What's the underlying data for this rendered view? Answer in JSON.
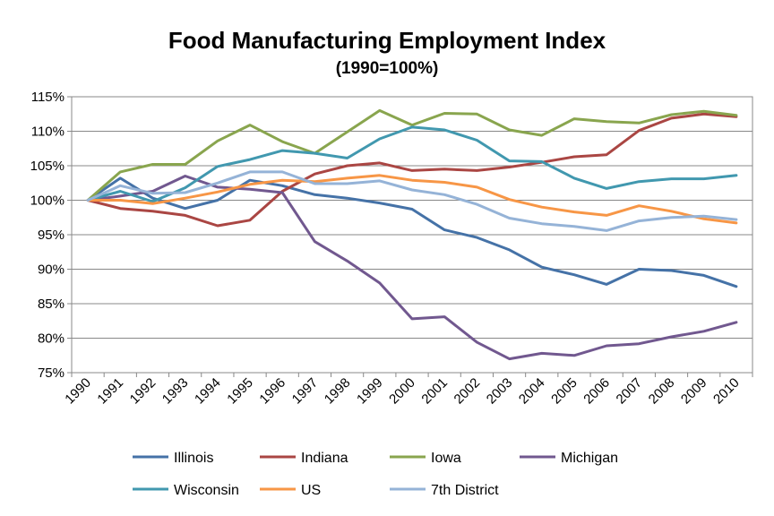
{
  "chart_data": {
    "type": "line",
    "title": "Food Manufacturing Employment Index",
    "subtitle": "(1990=100%)",
    "xlabel": "",
    "ylabel": "",
    "ylim": [
      75,
      115
    ],
    "y_ticks": [
      75,
      80,
      85,
      90,
      95,
      100,
      105,
      110,
      115
    ],
    "y_tick_labels": [
      "75%",
      "80%",
      "85%",
      "90%",
      "95%",
      "100%",
      "105%",
      "110%",
      "115%"
    ],
    "categories": [
      "1990",
      "1991",
      "1992",
      "1993",
      "1994",
      "1995",
      "1996",
      "1997",
      "1998",
      "1999",
      "2000",
      "2001",
      "2002",
      "2003",
      "2004",
      "2005",
      "2006",
      "2007",
      "2008",
      "2009",
      "2010"
    ],
    "grid": "horizontal",
    "legend_position": "bottom",
    "series": [
      {
        "name": "Illinois",
        "color": "#4572A7",
        "values": [
          100,
          103.2,
          100.3,
          98.8,
          100,
          102.9,
          102.1,
          100.8,
          100.3,
          99.6,
          98.7,
          95.7,
          94.6,
          92.8,
          90.3,
          89.2,
          87.8,
          90,
          89.8,
          89.1,
          87.5
        ]
      },
      {
        "name": "Indiana",
        "color": "#AA4643",
        "values": [
          100,
          98.8,
          98.4,
          97.8,
          96.3,
          97.1,
          101.3,
          103.8,
          105,
          105.4,
          104.3,
          104.5,
          104.3,
          104.8,
          105.5,
          106.3,
          106.6,
          110.1,
          111.9,
          112.5,
          112.1
        ]
      },
      {
        "name": "Iowa",
        "color": "#89A54E",
        "values": [
          100,
          104.1,
          105.2,
          105.2,
          108.6,
          110.9,
          108.5,
          106.8,
          109.9,
          113,
          110.9,
          112.6,
          112.5,
          110.2,
          109.4,
          111.8,
          111.4,
          111.2,
          112.4,
          112.9,
          112.3
        ]
      },
      {
        "name": "Michigan",
        "color": "#71588F",
        "values": [
          100,
          100.6,
          101.3,
          103.5,
          101.9,
          101.6,
          101.1,
          94,
          91.2,
          88,
          82.8,
          83.1,
          79.4,
          77,
          77.8,
          77.5,
          78.9,
          79.2,
          80.2,
          81,
          82.3
        ]
      },
      {
        "name": "Wisconsin",
        "color": "#4198AF",
        "values": [
          100,
          101.3,
          99.8,
          101.8,
          104.9,
          105.9,
          107.2,
          106.8,
          106.1,
          108.9,
          110.6,
          110.2,
          108.7,
          105.7,
          105.6,
          103.2,
          101.7,
          102.7,
          103.1,
          103.1,
          103.6
        ]
      },
      {
        "name": "US",
        "color": "#F79646",
        "values": [
          100,
          100,
          99.5,
          100.3,
          101.2,
          102.3,
          102.9,
          102.7,
          103.2,
          103.6,
          102.9,
          102.6,
          101.9,
          100.1,
          99,
          98.3,
          97.8,
          99.2,
          98.4,
          97.3,
          96.7
        ]
      },
      {
        "name": "7th District",
        "color": "#95B3D7",
        "values": [
          100,
          102.1,
          101,
          101.1,
          102.5,
          104.1,
          104.1,
          102.4,
          102.4,
          102.8,
          101.5,
          100.8,
          99.4,
          97.4,
          96.6,
          96.2,
          95.6,
          97,
          97.5,
          97.7,
          97.2
        ]
      }
    ]
  }
}
